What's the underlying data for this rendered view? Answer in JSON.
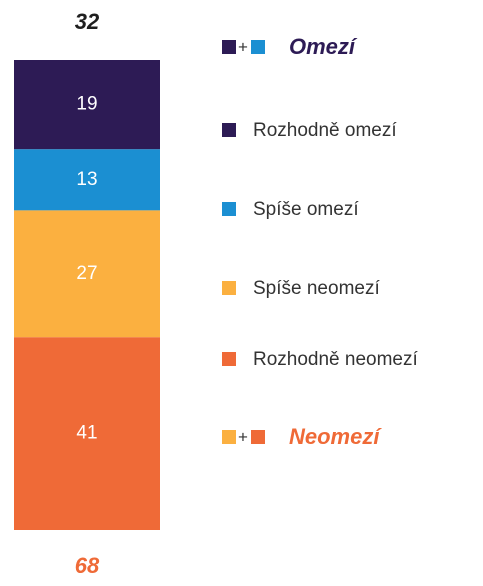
{
  "chart_data": {
    "type": "bar",
    "stacked": true,
    "ylim": [
      0,
      100
    ],
    "series": [
      {
        "name": "Rozhodně omezí",
        "color": "#2d1b55",
        "values": [
          19
        ]
      },
      {
        "name": "Spíše omezí",
        "color": "#1b8fd2",
        "values": [
          13
        ]
      },
      {
        "name": "Spíše neomezí",
        "color": "#fbb040",
        "values": [
          27
        ]
      },
      {
        "name": "Rozhodně neomezí",
        "color": "#ef6a37",
        "values": [
          41
        ]
      }
    ],
    "combine_symbol": "+",
    "summary": [
      {
        "label": "Omezí",
        "value": 32,
        "color": "#2d1b55",
        "series": [
          0,
          1
        ]
      },
      {
        "label": "Neomezí",
        "value": 68,
        "color": "#ef6a37",
        "series": [
          2,
          3
        ]
      }
    ]
  }
}
